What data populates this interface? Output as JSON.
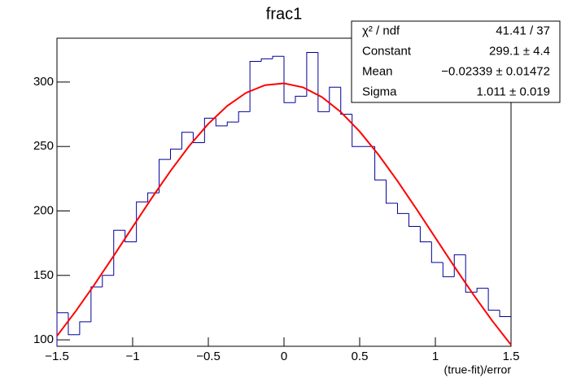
{
  "chart_data": {
    "type": "histogram",
    "title": "frac1",
    "xlabel": "(true-fit)/error",
    "color": "#000099",
    "bins": [
      -1.5,
      -1.425,
      -1.35,
      -1.275,
      -1.2,
      -1.125,
      -1.05,
      -0.975,
      -0.9,
      -0.825,
      -0.75,
      -0.675,
      -0.6,
      -0.525,
      -0.45,
      -0.375,
      -0.3,
      -0.225,
      -0.15,
      -0.075,
      0,
      0.075,
      0.15,
      0.225,
      0.3,
      0.375,
      0.45,
      0.525,
      0.6,
      0.675,
      0.75,
      0.825,
      0.9,
      0.975,
      1.05,
      1.125,
      1.2,
      1.275,
      1.35,
      1.425,
      1.5
    ],
    "values": [
      121,
      104,
      114,
      141,
      150,
      185,
      176,
      207,
      214,
      240,
      248,
      261,
      253,
      272,
      266,
      269,
      277,
      316,
      318,
      320,
      284,
      289,
      323,
      277,
      296,
      275,
      250,
      250,
      224,
      206,
      198,
      188,
      176,
      160,
      149,
      166,
      137,
      140,
      123,
      118
    ],
    "xlim": [
      -1.5,
      1.5
    ],
    "ylim": [
      95,
      334
    ],
    "xticks": [
      {
        "value": -1.5,
        "label": "−1.5"
      },
      {
        "value": -1,
        "label": "−1"
      },
      {
        "value": -0.5,
        "label": "−0.5"
      },
      0,
      0.5,
      1,
      1.5
    ],
    "yticks": [
      100,
      150,
      200,
      250,
      300
    ],
    "fit": {
      "type": "line",
      "color": "#ff0000",
      "x": [
        -1.5,
        -1.375,
        -1.25,
        -1.125,
        -1,
        -0.875,
        -0.75,
        -0.625,
        -0.5,
        -0.375,
        -0.25,
        -0.125,
        0,
        0.125,
        0.25,
        0.375,
        0.5,
        0.625,
        0.75,
        0.875,
        1,
        1.125,
        1.25,
        1.375,
        1.5
      ],
      "values": [
        103.0,
        122.4,
        143.3,
        165.2,
        187.6,
        209.8,
        231.0,
        250.6,
        267.6,
        281.5,
        291.7,
        297.6,
        299.0,
        295.9,
        288.4,
        276.8,
        261.6,
        243.5,
        223.2,
        201.5,
        179.2,
        156.9,
        135.3,
        114.9,
        96.1
      ]
    },
    "stats": {
      "rows": [
        [
          "χ² / ndf",
          "41.41 / 37"
        ],
        [
          "Constant",
          "299.1 ± 4.4"
        ],
        [
          "Mean",
          "−0.02339 ± 0.01472"
        ],
        [
          "Sigma",
          "1.011 ± 0.019"
        ]
      ]
    }
  }
}
